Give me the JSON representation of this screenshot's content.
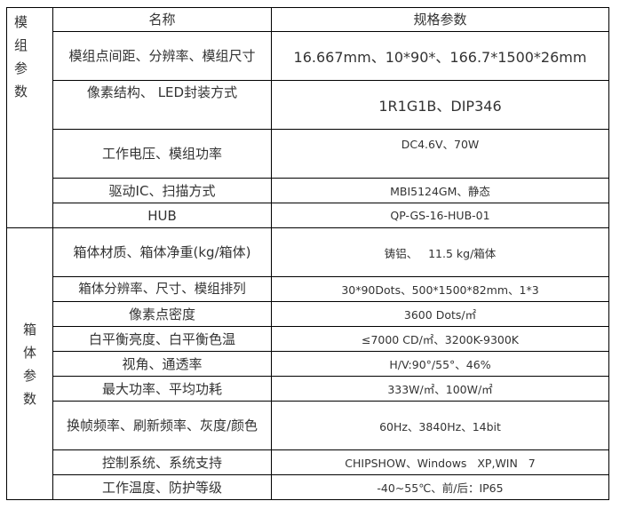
{
  "header": {
    "name": "名称",
    "spec": "规格参数"
  },
  "groups": [
    {
      "label": "模组参数",
      "rows": [
        {
          "name": "模组点间距、分辨率、模组尺寸",
          "value": "16.667mm、10*90*、166.7*1500*26mm"
        },
        {
          "name": "像素结构、 LED封装方式",
          "value": "1R1G1B、DIP346"
        },
        {
          "name": "工作电压、模组功率",
          "value": "DC4.6V、70W"
        },
        {
          "name": "驱动IC、扫描方式",
          "value": "MBI5124GM、静态"
        },
        {
          "name": "HUB",
          "value": "QP-GS-16-HUB-01"
        }
      ]
    },
    {
      "label": "箱体参数",
      "rows": [
        {
          "name": "箱体材质、箱体净重(kg/箱体)",
          "value": "铸铝、   11.5 kg/箱体"
        },
        {
          "name": "箱体分辨率、尺寸、模组排列",
          "value": "30*90Dots、500*1500*82mm、1*3"
        },
        {
          "name": "像素点密度",
          "value": "3600 Dots/㎡"
        },
        {
          "name": "白平衡亮度、白平衡色温",
          "value": "≤7000 CD/㎡、3200K-9300K"
        },
        {
          "name": "视角、通透率",
          "value": "H/V:90°/55°、46%"
        },
        {
          "name": "最大功率、平均功耗",
          "value": "333W/㎡、100W/㎡"
        },
        {
          "name": "换帧频率、刷新频率、灰度/颜色",
          "value": "60Hz、3840Hz、14bit"
        },
        {
          "name": "控制系统、系统支持",
          "value": "CHIPSHOW、Windows   XP,WIN   7"
        },
        {
          "name": "工作温度、防护等级",
          "value": "-40~55℃、前/后：IP65"
        }
      ]
    }
  ]
}
